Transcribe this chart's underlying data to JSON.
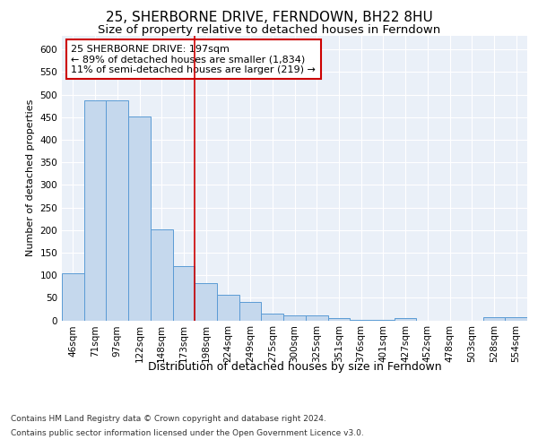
{
  "title1": "25, SHERBORNE DRIVE, FERNDOWN, BH22 8HU",
  "title2": "Size of property relative to detached houses in Ferndown",
  "xlabel": "Distribution of detached houses by size in Ferndown",
  "ylabel": "Number of detached properties",
  "footnote1": "Contains HM Land Registry data © Crown copyright and database right 2024.",
  "footnote2": "Contains public sector information licensed under the Open Government Licence v3.0.",
  "categories": [
    "46sqm",
    "71sqm",
    "97sqm",
    "122sqm",
    "148sqm",
    "173sqm",
    "198sqm",
    "224sqm",
    "249sqm",
    "275sqm",
    "300sqm",
    "325sqm",
    "351sqm",
    "376sqm",
    "401sqm",
    "427sqm",
    "452sqm",
    "478sqm",
    "503sqm",
    "528sqm",
    "554sqm"
  ],
  "values": [
    105,
    487,
    487,
    452,
    202,
    120,
    82,
    56,
    40,
    15,
    10,
    11,
    4,
    1,
    1,
    5,
    0,
    0,
    0,
    7,
    7
  ],
  "bar_color": "#c5d8ed",
  "bar_edge_color": "#5b9bd5",
  "annotation_box_color": "#cc0000",
  "vline_color": "#cc0000",
  "vline_x_index": 6,
  "annotation_text": "25 SHERBORNE DRIVE: 197sqm\n← 89% of detached houses are smaller (1,834)\n11% of semi-detached houses are larger (219) →",
  "ylim": [
    0,
    630
  ],
  "yticks": [
    0,
    50,
    100,
    150,
    200,
    250,
    300,
    350,
    400,
    450,
    500,
    550,
    600
  ],
  "plot_bg_color": "#eaf0f8",
  "title1_fontsize": 11,
  "title2_fontsize": 9.5,
  "annotation_fontsize": 8,
  "xlabel_fontsize": 9,
  "ylabel_fontsize": 8,
  "tick_fontsize": 7.5
}
